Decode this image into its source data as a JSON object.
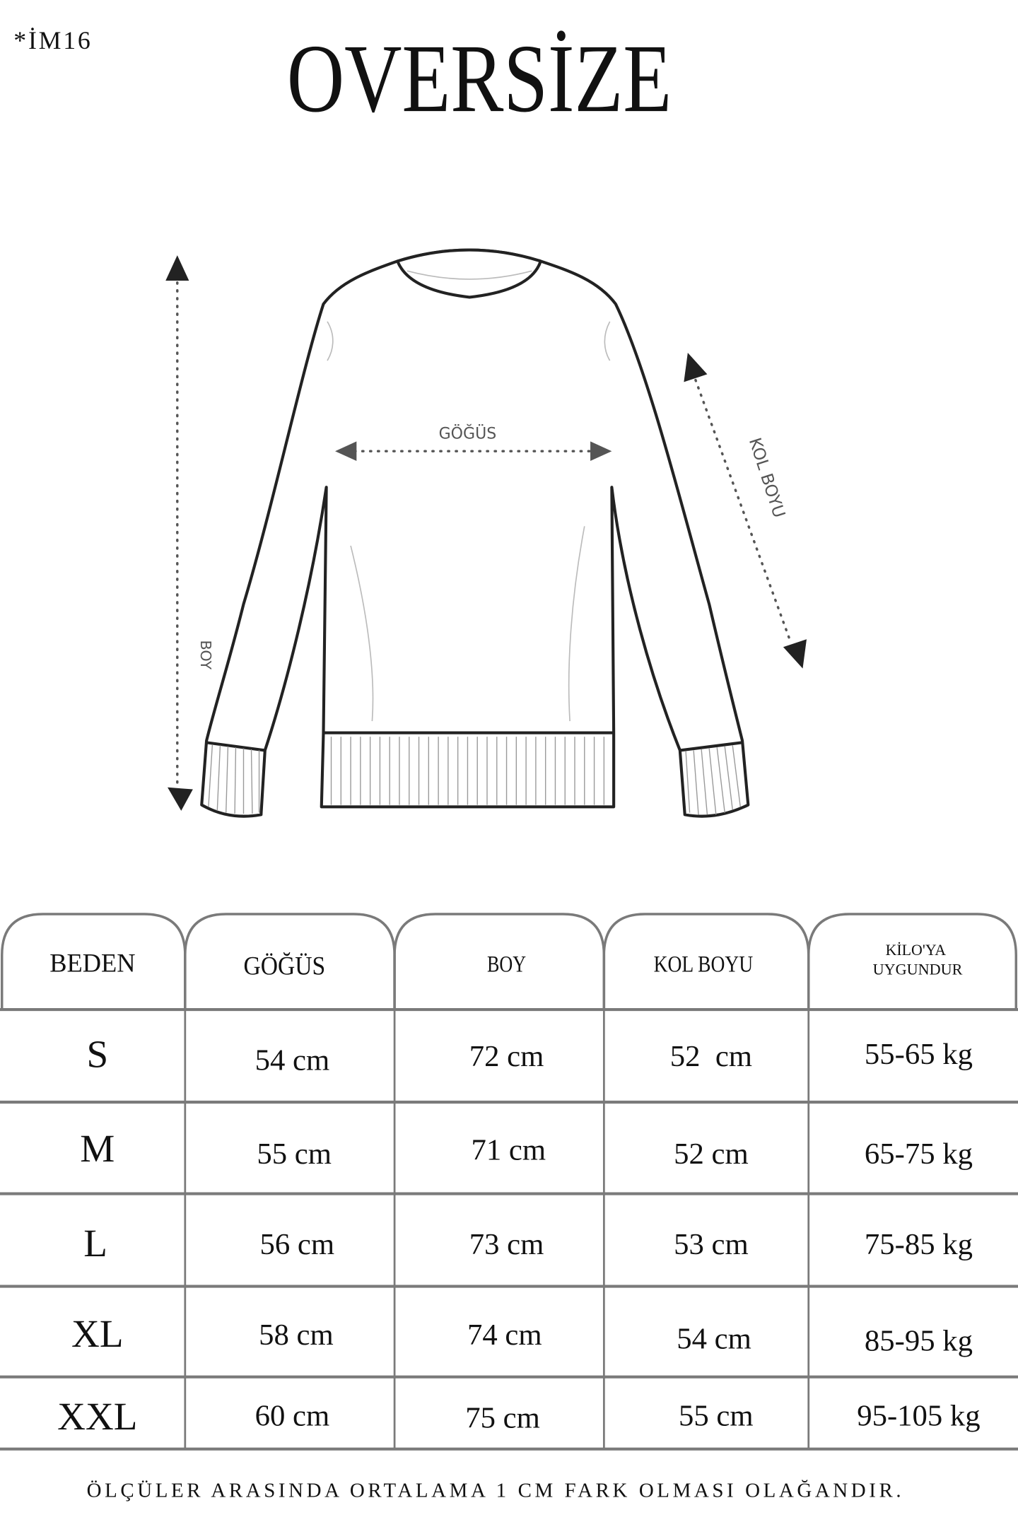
{
  "code": "*İM16",
  "title": "OVERSİZE",
  "diagram": {
    "labels": {
      "chest": "GÖĞÜS",
      "length": "BOY",
      "sleeve": "KOL BOYU"
    }
  },
  "table": {
    "headers": [
      "BEDEN",
      "GÖĞÜS",
      "BOY",
      "KOL BOYU",
      "KİLO'YA",
      "UYGUNDUR"
    ],
    "rows": [
      [
        "S",
        "54 cm",
        "72 cm",
        "52  cm",
        "55-65 kg"
      ],
      [
        "M",
        "55 cm",
        "71 cm",
        "52 cm",
        "65-75 kg"
      ],
      [
        "L",
        "56 cm",
        "73 cm",
        "53 cm",
        "75-85 kg"
      ],
      [
        "XL",
        "58 cm",
        "74 cm",
        "54 cm",
        "85-95 kg"
      ],
      [
        "XXL",
        "60 cm",
        "75 cm",
        "55 cm",
        "95-105 kg"
      ]
    ]
  },
  "footer_note": "ÖLÇÜLER ARASINDA ORTALAMA 1 CM FARK OLMASI OLAĞANDIR."
}
